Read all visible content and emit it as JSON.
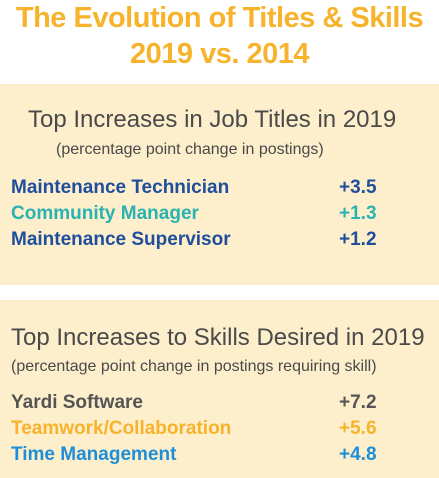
{
  "header": {
    "title_line1": "The Evolution of Titles & Skills",
    "title_line2": "2019 vs. 2014"
  },
  "titles_section": {
    "title": "Top Increases in Job Titles in 2019",
    "subtitle": "(percentage point change in postings)",
    "rows": [
      {
        "label": "Maintenance Technician",
        "value": "+3.5",
        "color": "#1f4e9c"
      },
      {
        "label": "Community Manager",
        "value": "+1.3",
        "color": "#2bb3b1"
      },
      {
        "label": "Maintenance Supervisor",
        "value": "+1.2",
        "color": "#1f4e9c"
      }
    ]
  },
  "skills_section": {
    "title": "Top Increases to Skills Desired in 2019",
    "subtitle": "(percentage point change in postings requiring skill)",
    "rows": [
      {
        "label": "Yardi Software",
        "value": "+7.2",
        "color": "#555555"
      },
      {
        "label": "Teamwork/Collaboration",
        "value": "+5.6",
        "color": "#f7b32b"
      },
      {
        "label": "Time Management",
        "value": "+4.8",
        "color": "#1e8fd6"
      }
    ]
  },
  "colors": {
    "accent": "#f7b32b",
    "panel": "#fdeecc"
  }
}
